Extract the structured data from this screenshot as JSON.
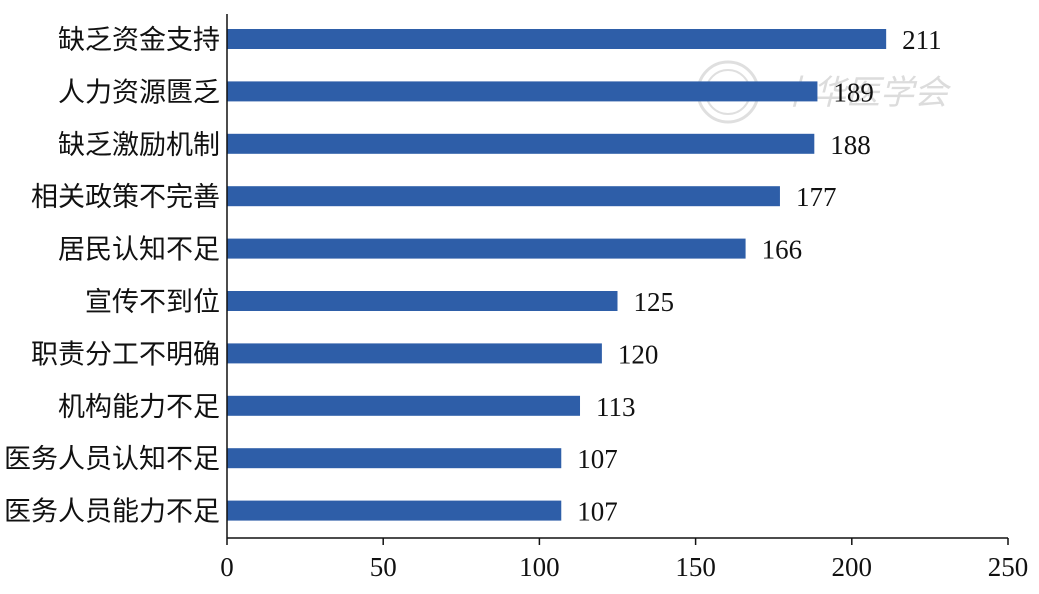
{
  "chart_data": {
    "type": "bar",
    "orientation": "horizontal",
    "categories": [
      "缺乏资金支持",
      "人力资源匮乏",
      "缺乏激励机制",
      "相关政策不完善",
      "居民认知不足",
      "宣传不到位",
      "职责分工不明确",
      "机构能力不足",
      "医务人员认知不足",
      "医务人员能力不足"
    ],
    "values": [
      211,
      189,
      188,
      177,
      166,
      125,
      120,
      113,
      107,
      107
    ],
    "xlim": [
      0,
      250
    ],
    "xticks": [
      0,
      50,
      100,
      150,
      200,
      250
    ],
    "xlabel": "",
    "ylabel": "",
    "grid": false,
    "bar_color": "#2e5ea8",
    "data_labels": true
  },
  "watermark": {
    "text": "中华医学会",
    "color": "#d9d9d9"
  }
}
